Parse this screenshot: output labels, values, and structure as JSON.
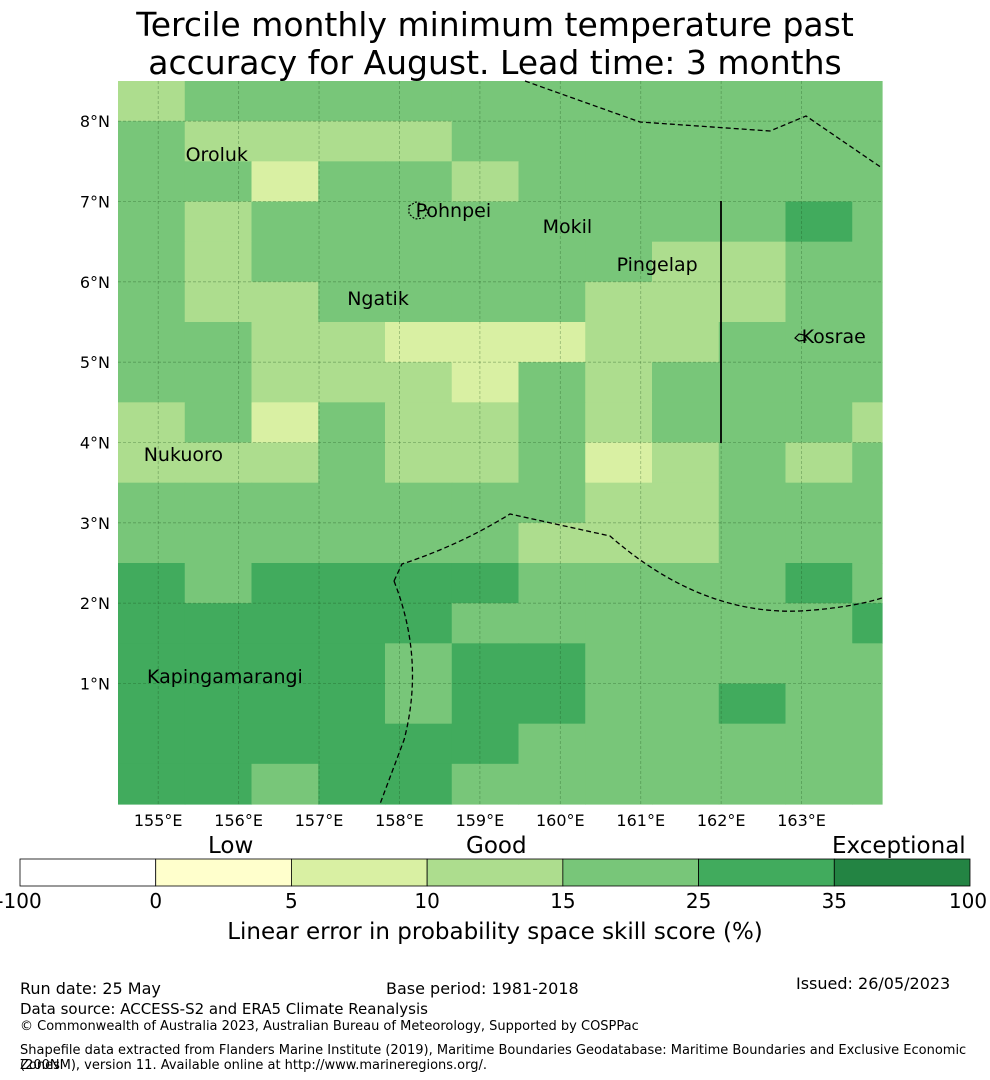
{
  "title": {
    "line1": "Tercile monthly minimum temperature past",
    "line2": "accuracy for August. Lead time: 3 months"
  },
  "map": {
    "lon_range": [
      154.5,
      164.0
    ],
    "lat_range": [
      -0.5,
      8.5
    ],
    "lon_ticks": [
      {
        "value": 155,
        "label": "155°E"
      },
      {
        "value": 156,
        "label": "156°E"
      },
      {
        "value": 157,
        "label": "157°E"
      },
      {
        "value": 158,
        "label": "158°E"
      },
      {
        "value": 159,
        "label": "159°E"
      },
      {
        "value": 160,
        "label": "160°E"
      },
      {
        "value": 161,
        "label": "161°E"
      },
      {
        "value": 162,
        "label": "162°E"
      },
      {
        "value": 163,
        "label": "163°E"
      }
    ],
    "lat_ticks": [
      {
        "value": 1,
        "label": "1°N"
      },
      {
        "value": 2,
        "label": "2°N"
      },
      {
        "value": 3,
        "label": "3°N"
      },
      {
        "value": 4,
        "label": "4°N"
      },
      {
        "value": 5,
        "label": "5°N"
      },
      {
        "value": 6,
        "label": "6°N"
      },
      {
        "value": 7,
        "label": "7°N"
      },
      {
        "value": 8,
        "label": "8°N"
      }
    ],
    "grid": true,
    "cell_colors": [
      "#ffffff",
      "#ffffcc",
      "#d9f0a3",
      "#addd8e",
      "#78c679",
      "#41ab5d",
      "#238443"
    ],
    "cell_rows_north_to_south": [
      "3444444444444",
      "4333344444443",
      "4424434444443",
      "4344444444545",
      "4344444433444",
      "4334444333444",
      "4433222334444",
      "4433324344444",
      "3424334344434",
      "3334334234344",
      "4444444334445",
      "4444443334444",
      "5455554444544",
      "5555544444455",
      "5555455444445",
      "5555455445445",
      "5555554444444",
      "5545544444444"
    ],
    "places": [
      {
        "name": "Oroluk",
        "lon": 155.34,
        "lat": 7.58
      },
      {
        "name": "Pohnpei",
        "lon": 158.2,
        "lat": 6.88
      },
      {
        "name": "Mokil",
        "lon": 159.78,
        "lat": 6.68
      },
      {
        "name": "Pingelap",
        "lon": 160.7,
        "lat": 6.21
      },
      {
        "name": "Ngatik",
        "lon": 157.35,
        "lat": 5.79
      },
      {
        "name": "Kosrae",
        "lon": 163.0,
        "lat": 5.32
      },
      {
        "name": "Nukuoro",
        "lon": 154.82,
        "lat": 3.85
      },
      {
        "name": "Kapingamarangi",
        "lon": 154.86,
        "lat": 1.08
      }
    ]
  },
  "colorbar": {
    "colors": [
      "#ffffff",
      "#ffffcc",
      "#d9f0a3",
      "#addd8e",
      "#78c679",
      "#41ab5d",
      "#238443"
    ],
    "tick_labels": [
      "-100",
      "0",
      "5",
      "10",
      "15",
      "25",
      "35",
      "100"
    ],
    "category_labels": {
      "low": "Low",
      "good": "Good",
      "exceptional": "Exceptional"
    },
    "title": "Linear error in probability space skill score (%)"
  },
  "footer": {
    "run_date": "Run date: 25 May",
    "base_period": "Base period: 1981-2018",
    "issued": "Issued: 26/05/2023",
    "data_source": "Data source: ACCESS-S2 and ERA5 Climate Reanalysis",
    "copyright": "© Commonwealth of Australia 2023, Australian Bureau of Meteorology, Supported by COSPPac",
    "shapefile_line1": "Shapefile data extracted from Flanders Marine Institute (2019), Maritime Boundaries Geodatabase: Maritime Boundaries and Exclusive Economic Zones",
    "shapefile_line2": "(200NM), version 11. Available online at http://www.marineregions.org/."
  }
}
